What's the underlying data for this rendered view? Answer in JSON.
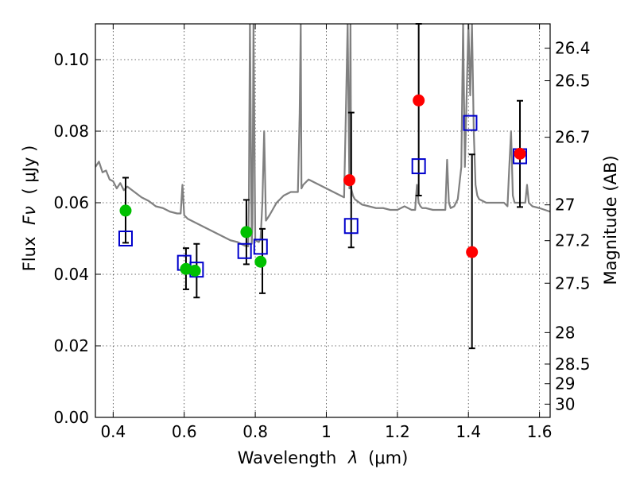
{
  "chart_data": {
    "type": "scatter",
    "xlabel_prefix": "Wavelength",
    "xlabel_symbol": "λ",
    "xlabel_unit": "(μm)",
    "ylabel_prefix": "Flux",
    "ylabel_symbol": "Fν",
    "ylabel_unit": "( μJy )",
    "y2label": "Magnitude (AB)",
    "xlim": [
      0.35,
      1.63
    ],
    "ylim": [
      0.0,
      0.11
    ],
    "grid": true,
    "xticks": [
      0.4,
      0.6,
      0.8,
      1.0,
      1.2,
      1.4,
      1.6
    ],
    "xtick_labels": [
      "0.4",
      "0.6",
      "0.8",
      "1",
      "1.2",
      "1.4",
      "1.6"
    ],
    "yticks": [
      0.0,
      0.02,
      0.04,
      0.06,
      0.08,
      0.1
    ],
    "ytick_labels": [
      "0.00",
      "0.02",
      "0.04",
      "0.06",
      "0.08",
      "0.10"
    ],
    "y2ticks": [
      {
        "label": "26.4",
        "flux": 0.1032
      },
      {
        "label": "26.5",
        "flux": 0.0941
      },
      {
        "label": "26.7",
        "flux": 0.0783
      },
      {
        "label": "27",
        "flux": 0.0594
      },
      {
        "label": "27.2",
        "flux": 0.0494
      },
      {
        "label": "27.5",
        "flux": 0.0375
      },
      {
        "label": "28",
        "flux": 0.0237
      },
      {
        "label": "28.5",
        "flux": 0.0149
      },
      {
        "label": "29",
        "flux": 0.0094
      },
      {
        "label": "30",
        "flux": 0.0037
      }
    ],
    "colors": {
      "model": "#808080",
      "green": "#00c000",
      "red": "#ff0000",
      "model_box": "#0000cc",
      "errorbar": "#000000"
    },
    "model_spectrum": {
      "x": [
        0.35,
        0.36,
        0.37,
        0.38,
        0.39,
        0.4,
        0.41,
        0.42,
        0.43,
        0.44,
        0.46,
        0.48,
        0.5,
        0.52,
        0.54,
        0.56,
        0.58,
        0.59,
        0.595,
        0.6,
        0.605,
        0.61,
        0.63,
        0.65,
        0.67,
        0.69,
        0.71,
        0.73,
        0.75,
        0.77,
        0.78,
        0.782,
        0.785,
        0.79,
        0.792,
        0.795,
        0.8,
        0.81,
        0.815,
        0.82,
        0.825,
        0.83,
        0.84,
        0.86,
        0.88,
        0.9,
        0.92,
        0.925,
        0.928,
        0.93,
        0.935,
        0.95,
        0.98,
        1.0,
        1.02,
        1.04,
        1.05,
        1.055,
        1.06,
        1.065,
        1.068,
        1.07,
        1.075,
        1.08,
        1.1,
        1.12,
        1.14,
        1.16,
        1.18,
        1.2,
        1.22,
        1.24,
        1.25,
        1.255,
        1.26,
        1.265,
        1.27,
        1.28,
        1.3,
        1.32,
        1.335,
        1.34,
        1.345,
        1.35,
        1.36,
        1.37,
        1.38,
        1.385,
        1.39,
        1.4,
        1.405,
        1.41,
        1.415,
        1.42,
        1.425,
        1.43,
        1.45,
        1.47,
        1.49,
        1.5,
        1.51,
        1.515,
        1.52,
        1.525,
        1.53,
        1.55,
        1.56,
        1.565,
        1.57,
        1.58,
        1.6,
        1.63
      ],
      "y": [
        0.07,
        0.0715,
        0.0685,
        0.069,
        0.0665,
        0.066,
        0.064,
        0.0655,
        0.0635,
        0.0645,
        0.063,
        0.0615,
        0.0605,
        0.059,
        0.0585,
        0.0575,
        0.057,
        0.057,
        0.065,
        0.0565,
        0.056,
        0.0555,
        0.0545,
        0.0535,
        0.0525,
        0.0515,
        0.0505,
        0.0495,
        0.049,
        0.048,
        0.0478,
        0.06,
        0.11,
        0.0485,
        0.054,
        0.11,
        0.0495,
        0.049,
        0.05,
        0.06,
        0.08,
        0.055,
        0.0565,
        0.06,
        0.062,
        0.063,
        0.063,
        0.085,
        0.11,
        0.064,
        0.065,
        0.0665,
        0.065,
        0.064,
        0.063,
        0.062,
        0.0615,
        0.085,
        0.11,
        0.064,
        0.11,
        0.064,
        0.062,
        0.061,
        0.0595,
        0.059,
        0.0585,
        0.0585,
        0.058,
        0.058,
        0.059,
        0.058,
        0.058,
        0.065,
        0.06,
        0.059,
        0.0585,
        0.0585,
        0.058,
        0.058,
        0.058,
        0.072,
        0.06,
        0.0585,
        0.059,
        0.061,
        0.07,
        0.11,
        0.07,
        0.11,
        0.09,
        0.11,
        0.08,
        0.065,
        0.062,
        0.061,
        0.06,
        0.06,
        0.06,
        0.06,
        0.059,
        0.07,
        0.08,
        0.062,
        0.06,
        0.06,
        0.06,
        0.065,
        0.06,
        0.059,
        0.0585,
        0.0575
      ]
    },
    "points_green": [
      {
        "x": 0.435,
        "y": 0.0578
      },
      {
        "x": 0.605,
        "y": 0.0415
      },
      {
        "x": 0.63,
        "y": 0.041
      },
      {
        "x": 0.775,
        "y": 0.0518
      },
      {
        "x": 0.815,
        "y": 0.0435
      }
    ],
    "points_red": [
      {
        "x": 1.065,
        "y": 0.0663
      },
      {
        "x": 1.26,
        "y": 0.0886
      },
      {
        "x": 1.41,
        "y": 0.0462
      },
      {
        "x": 1.545,
        "y": 0.0737
      }
    ],
    "model_boxes": [
      {
        "x": 0.435,
        "y": 0.05
      },
      {
        "x": 0.6,
        "y": 0.0432
      },
      {
        "x": 0.635,
        "y": 0.0413
      },
      {
        "x": 0.77,
        "y": 0.0465
      },
      {
        "x": 0.815,
        "y": 0.0477
      },
      {
        "x": 1.07,
        "y": 0.0535
      },
      {
        "x": 1.26,
        "y": 0.0702
      },
      {
        "x": 1.405,
        "y": 0.0823
      },
      {
        "x": 1.545,
        "y": 0.073
      }
    ],
    "error_bars": [
      {
        "x": 0.435,
        "lo": 0.0488,
        "hi": 0.067
      },
      {
        "x": 0.605,
        "lo": 0.0358,
        "hi": 0.0473
      },
      {
        "x": 0.635,
        "lo": 0.0335,
        "hi": 0.0485
      },
      {
        "x": 0.775,
        "lo": 0.0428,
        "hi": 0.0608
      },
      {
        "x": 0.82,
        "lo": 0.0347,
        "hi": 0.0527
      },
      {
        "x": 1.07,
        "lo": 0.0475,
        "hi": 0.0852
      },
      {
        "x": 1.26,
        "lo": 0.062,
        "hi": 0.11
      },
      {
        "x": 1.41,
        "lo": 0.0193,
        "hi": 0.0735
      },
      {
        "x": 1.545,
        "lo": 0.0588,
        "hi": 0.0885
      }
    ]
  }
}
